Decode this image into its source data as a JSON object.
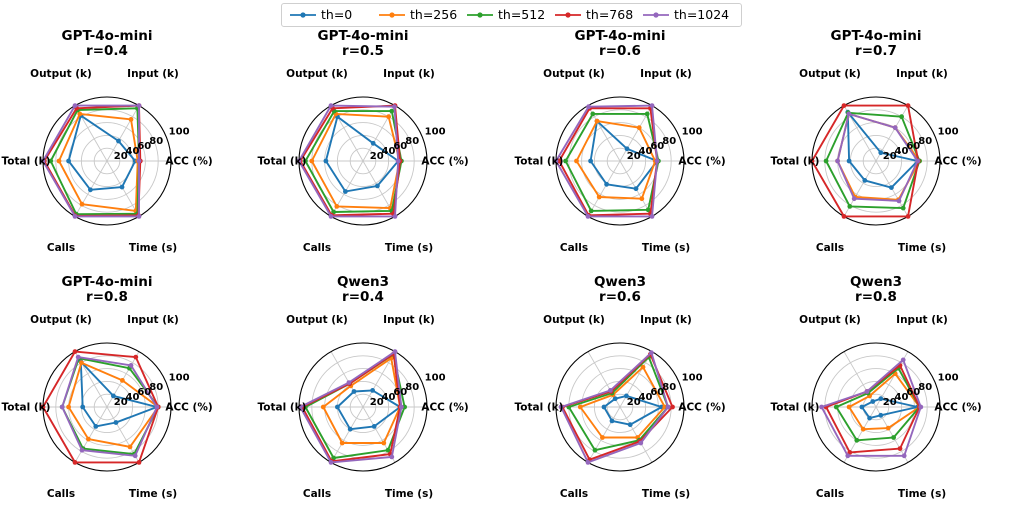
{
  "legend": [
    {
      "name": "th=0",
      "color": "#1f77b4"
    },
    {
      "name": "th=256",
      "color": "#ff7f0e"
    },
    {
      "name": "th=512",
      "color": "#2ca02c"
    },
    {
      "name": "th=768",
      "color": "#d62728"
    },
    {
      "name": "th=1024",
      "color": "#9467bd"
    }
  ],
  "chart_data": [
    {
      "type": "radar",
      "title": "GPT-4o-mini\nr=0.4",
      "axes": [
        "ACC (%)",
        "Input (k)",
        "Output (k)",
        "Total (k)",
        "Calls",
        "Time (s)"
      ],
      "rticks": [
        20,
        40,
        60,
        80,
        100
      ],
      "rlim": [
        0,
        100
      ],
      "series": [
        {
          "name": "th=0",
          "values": [
            44,
            36,
            82,
            60,
            52,
            47
          ]
        },
        {
          "name": "th=256",
          "values": [
            48,
            75,
            85,
            75,
            78,
            90
          ]
        },
        {
          "name": "th=512",
          "values": [
            50,
            95,
            92,
            88,
            96,
            95
          ]
        },
        {
          "name": "th=768",
          "values": [
            52,
            100,
            95,
            98,
            99,
            98
          ]
        },
        {
          "name": "th=1024",
          "values": [
            50,
            100,
            100,
            100,
            100,
            100
          ]
        }
      ]
    },
    {
      "type": "radar",
      "title": "GPT-4o-mini\nr=0.5",
      "axes": [
        "ACC (%)",
        "Input (k)",
        "Output (k)",
        "Total (k)",
        "Calls",
        "Time (s)"
      ],
      "rticks": [
        20,
        40,
        60,
        80,
        100
      ],
      "rlim": [
        0,
        100
      ],
      "series": [
        {
          "name": "th=0",
          "values": [
            55,
            32,
            80,
            58,
            55,
            45
          ]
        },
        {
          "name": "th=256",
          "values": [
            57,
            80,
            85,
            80,
            82,
            85
          ]
        },
        {
          "name": "th=512",
          "values": [
            60,
            90,
            90,
            90,
            92,
            90
          ]
        },
        {
          "name": "th=768",
          "values": [
            58,
            100,
            95,
            98,
            98,
            95
          ]
        },
        {
          "name": "th=1024",
          "values": [
            55,
            98,
            100,
            100,
            100,
            100
          ]
        }
      ]
    },
    {
      "type": "radar",
      "title": "GPT-4o-mini\nr=0.6",
      "axes": [
        "ACC (%)",
        "Input (k)",
        "Output (k)",
        "Total (k)",
        "Calls",
        "Time (s)"
      ],
      "rticks": [
        20,
        40,
        60,
        80,
        100
      ],
      "rlim": [
        0,
        100
      ],
      "series": [
        {
          "name": "th=0",
          "values": [
            58,
            22,
            72,
            46,
            42,
            50
          ]
        },
        {
          "name": "th=256",
          "values": [
            55,
            60,
            72,
            68,
            65,
            68
          ]
        },
        {
          "name": "th=512",
          "values": [
            60,
            85,
            85,
            85,
            90,
            88
          ]
        },
        {
          "name": "th=768",
          "values": [
            58,
            95,
            95,
            95,
            98,
            95
          ]
        },
        {
          "name": "th=1024",
          "values": [
            58,
            100,
            98,
            100,
            100,
            100
          ]
        }
      ]
    },
    {
      "type": "radar",
      "title": "GPT-4o-mini\nr=0.7",
      "axes": [
        "ACC (%)",
        "Input (k)",
        "Output (k)",
        "Total (k)",
        "Calls",
        "Time (s)"
      ],
      "rticks": [
        20,
        40,
        60,
        80,
        100
      ],
      "rlim": [
        0,
        100
      ],
      "series": [
        {
          "name": "th=0",
          "values": [
            65,
            15,
            88,
            42,
            35,
            48
          ]
        },
        {
          "name": "th=256",
          "values": [
            68,
            60,
            85,
            60,
            65,
            70
          ]
        },
        {
          "name": "th=512",
          "values": [
            68,
            80,
            87,
            78,
            82,
            85
          ]
        },
        {
          "name": "th=768",
          "values": [
            66,
            100,
            100,
            100,
            100,
            100
          ]
        },
        {
          "name": "th=1024",
          "values": [
            65,
            60,
            85,
            60,
            68,
            72
          ]
        }
      ]
    },
    {
      "type": "radar",
      "title": "GPT-4o-mini\nr=0.8",
      "axes": [
        "ACC (%)",
        "Input (k)",
        "Output (k)",
        "Total (k)",
        "Calls",
        "Time (s)"
      ],
      "rticks": [
        20,
        40,
        60,
        80,
        100
      ],
      "rlim": [
        0,
        100
      ],
      "series": [
        {
          "name": "th=0",
          "values": [
            78,
            20,
            82,
            38,
            35,
            28
          ]
        },
        {
          "name": "th=256",
          "values": [
            80,
            48,
            80,
            60,
            58,
            72
          ]
        },
        {
          "name": "th=512",
          "values": [
            80,
            70,
            88,
            70,
            75,
            85
          ]
        },
        {
          "name": "th=768",
          "values": [
            80,
            90,
            100,
            100,
            100,
            100
          ]
        },
        {
          "name": "th=1024",
          "values": [
            78,
            75,
            90,
            70,
            78,
            88
          ]
        }
      ]
    },
    {
      "type": "radar",
      "title": "Qwen3\nr=0.4",
      "axes": [
        "ACC (%)",
        "Input (k)",
        "Output (k)",
        "Total (k)",
        "Calls",
        "Time (s)"
      ],
      "rticks": [
        20,
        40,
        60,
        80,
        100
      ],
      "rlim": [
        0,
        100
      ],
      "series": [
        {
          "name": "th=0",
          "values": [
            58,
            30,
            28,
            40,
            40,
            35
          ]
        },
        {
          "name": "th=256",
          "values": [
            58,
            88,
            38,
            62,
            65,
            65
          ]
        },
        {
          "name": "th=512",
          "values": [
            65,
            95,
            42,
            90,
            92,
            78
          ]
        },
        {
          "name": "th=768",
          "values": [
            58,
            96,
            42,
            95,
            98,
            85
          ]
        },
        {
          "name": "th=1024",
          "values": [
            60,
            100,
            44,
            98,
            100,
            90
          ]
        }
      ]
    },
    {
      "type": "radar",
      "title": "Qwen3\nr=0.6",
      "axes": [
        "ACC (%)",
        "Input (k)",
        "Output (k)",
        "Total (k)",
        "Calls",
        "Time (s)"
      ],
      "rticks": [
        20,
        40,
        60,
        80,
        100
      ],
      "rlim": [
        0,
        100
      ],
      "series": [
        {
          "name": "th=0",
          "values": [
            65,
            20,
            15,
            25,
            25,
            32
          ]
        },
        {
          "name": "th=256",
          "values": [
            70,
            72,
            22,
            62,
            55,
            55
          ]
        },
        {
          "name": "th=512",
          "values": [
            75,
            90,
            25,
            80,
            78,
            60
          ]
        },
        {
          "name": "th=768",
          "values": [
            82,
            95,
            28,
            90,
            95,
            62
          ]
        },
        {
          "name": "th=1024",
          "values": [
            75,
            98,
            30,
            92,
            100,
            65
          ]
        }
      ]
    },
    {
      "type": "radar",
      "title": "Qwen3\nr=0.8",
      "axes": [
        "ACC (%)",
        "Input (k)",
        "Output (k)",
        "Total (k)",
        "Calls",
        "Time (s)"
      ],
      "rticks": [
        20,
        40,
        60,
        80,
        100
      ],
      "rlim": [
        0,
        100
      ],
      "series": [
        {
          "name": "th=0",
          "values": [
            65,
            15,
            10,
            22,
            20,
            15
          ]
        },
        {
          "name": "th=256",
          "values": [
            68,
            60,
            20,
            42,
            40,
            38
          ]
        },
        {
          "name": "th=512",
          "values": [
            68,
            70,
            25,
            62,
            60,
            55
          ]
        },
        {
          "name": "th=768",
          "values": [
            68,
            75,
            28,
            78,
            82,
            75
          ]
        },
        {
          "name": "th=1024",
          "values": [
            70,
            85,
            28,
            85,
            88,
            88
          ]
        }
      ]
    }
  ]
}
